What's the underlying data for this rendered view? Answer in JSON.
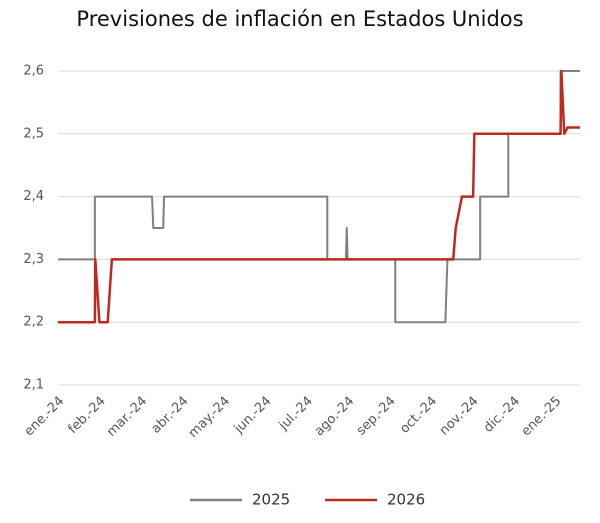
{
  "chart_data": {
    "type": "line",
    "title": "Previsiones de inflación en Estados Unidos",
    "xlim": [
      0,
      12.6
    ],
    "xticks": [
      {
        "value": 0,
        "label": "ene.-24"
      },
      {
        "value": 1,
        "label": "feb.-24"
      },
      {
        "value": 2,
        "label": "mar.-24"
      },
      {
        "value": 3,
        "label": "abr.-24"
      },
      {
        "value": 4,
        "label": "may.-24"
      },
      {
        "value": 5,
        "label": "jun.-24"
      },
      {
        "value": 6,
        "label": "jul.-24"
      },
      {
        "value": 7,
        "label": "ago.-24"
      },
      {
        "value": 8,
        "label": "sep.-24"
      },
      {
        "value": 9,
        "label": "oct.-24"
      },
      {
        "value": 10,
        "label": "nov.-24"
      },
      {
        "value": 11,
        "label": "dic.-24"
      },
      {
        "value": 12,
        "label": "ene.-25"
      }
    ],
    "ylim": [
      2.1,
      2.6
    ],
    "yticks": [
      {
        "value": 2.1,
        "label": "2,1"
      },
      {
        "value": 2.2,
        "label": "2,2"
      },
      {
        "value": 2.3,
        "label": "2,3"
      },
      {
        "value": 2.4,
        "label": "2,4"
      },
      {
        "value": 2.5,
        "label": "2,5"
      },
      {
        "value": 2.6,
        "label": "2,6"
      }
    ],
    "grid": true,
    "legend": "bottom",
    "series": [
      {
        "name": "2025",
        "color": "#808080",
        "x": [
          0,
          0.89,
          0.89,
          2.27,
          2.3,
          2.54,
          2.56,
          6.5,
          6.5,
          6.95,
          6.97,
          6.99,
          8.14,
          8.14,
          9.35,
          9.4,
          10.19,
          10.19,
          10.87,
          10.87,
          12.13,
          12.13,
          12.6
        ],
        "values": [
          2.3,
          2.3,
          2.4,
          2.4,
          2.35,
          2.35,
          2.4,
          2.4,
          2.3,
          2.3,
          2.35,
          2.3,
          2.3,
          2.2,
          2.2,
          2.3,
          2.3,
          2.4,
          2.4,
          2.5,
          2.5,
          2.6,
          2.6
        ]
      },
      {
        "name": "2026",
        "color": "#c0291b",
        "x": [
          0,
          0.89,
          0.9,
          1.0,
          1.2,
          1.3,
          9.54,
          9.6,
          9.75,
          10.02,
          10.05,
          12.13,
          12.15,
          12.22,
          12.3,
          12.6
        ],
        "values": [
          2.2,
          2.2,
          2.3,
          2.2,
          2.2,
          2.3,
          2.3,
          2.35,
          2.4,
          2.4,
          2.5,
          2.5,
          2.6,
          2.5,
          2.51,
          2.51
        ]
      }
    ]
  }
}
